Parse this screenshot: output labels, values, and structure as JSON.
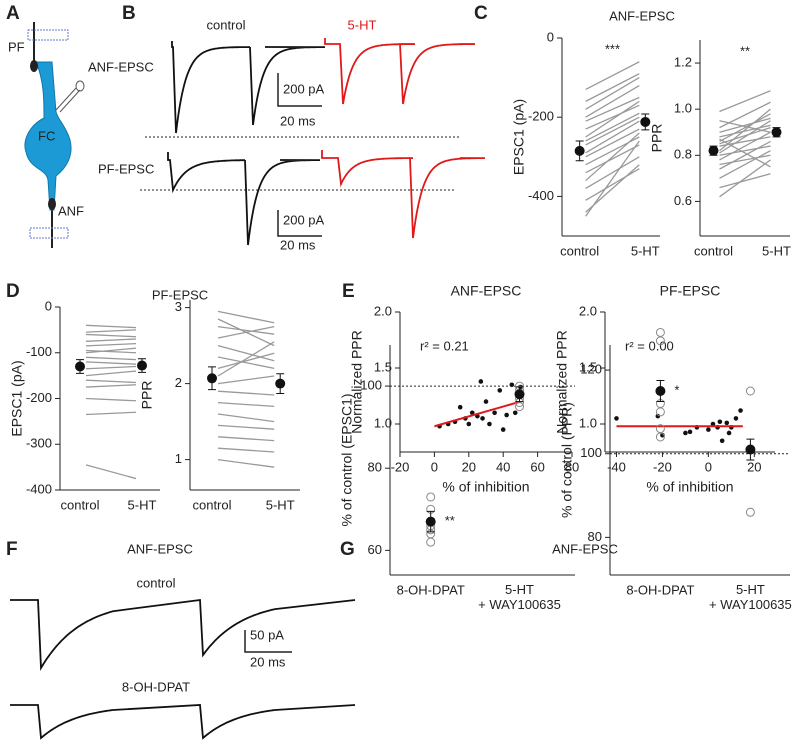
{
  "figure": {
    "panels": [
      "A",
      "B",
      "C",
      "D",
      "E",
      "F",
      "G"
    ],
    "diagram": {
      "pf": "PF",
      "fc": "FC",
      "anf": "ANF"
    },
    "b": {
      "control": "control",
      "treated": "5-HT",
      "anf": "ANF-EPSC",
      "pf": "PF-EPSC",
      "scale_amp": "200 pA",
      "scale_time": "20 ms"
    },
    "c_title": "ANF-EPSC",
    "d_title": "PF-EPSC",
    "g_title": "ANF-EPSC",
    "f": {
      "title": "ANF-EPSC",
      "control": "control",
      "drug": "8-OH-DPAT",
      "scale_amp": "50 pA",
      "scale_time": "20 ms"
    }
  },
  "chart_data": [
    {
      "type": "slope",
      "categories": [
        "control",
        "5-HT"
      ],
      "ylabel": "EPSC1 (pA)",
      "annotation": "***",
      "pairs": [
        [
          -130,
          -60
        ],
        [
          -160,
          -90
        ],
        [
          -180,
          -100
        ],
        [
          -200,
          -120
        ],
        [
          -210,
          -150
        ],
        [
          -230,
          -170
        ],
        [
          -250,
          -160
        ],
        [
          -260,
          -190
        ],
        [
          -270,
          -200
        ],
        [
          -290,
          -210
        ],
        [
          -300,
          -230
        ],
        [
          -320,
          -250
        ],
        [
          -340,
          -270
        ],
        [
          -360,
          -240
        ],
        [
          -380,
          -300
        ],
        [
          -410,
          -330
        ],
        [
          -440,
          -320
        ],
        [
          -450,
          -260
        ]
      ],
      "mean": [
        -285,
        -212
      ],
      "error": [
        25,
        20
      ],
      "ylim": [
        -500,
        0
      ],
      "yticks": [
        -400,
        -200,
        0
      ]
    },
    {
      "type": "slope",
      "categories": [
        "control",
        "5-HT"
      ],
      "ylabel": "PPR",
      "annotation": "**",
      "pairs": [
        [
          0.62,
          0.78
        ],
        [
          0.66,
          0.72
        ],
        [
          0.7,
          0.82
        ],
        [
          0.74,
          0.86
        ],
        [
          0.76,
          0.8
        ],
        [
          0.78,
          0.9
        ],
        [
          0.8,
          0.84
        ],
        [
          0.81,
          0.95
        ],
        [
          0.82,
          1.0
        ],
        [
          0.84,
          0.88
        ],
        [
          0.85,
          0.92
        ],
        [
          0.86,
          0.98
        ],
        [
          0.87,
          0.75
        ],
        [
          0.88,
          0.93
        ],
        [
          0.9,
          0.96
        ],
        [
          0.92,
          1.03
        ],
        [
          0.95,
          0.9
        ],
        [
          0.99,
          1.08
        ]
      ],
      "mean": [
        0.82,
        0.9
      ],
      "error": [
        0.02,
        0.02
      ],
      "ylim": [
        0.45,
        1.3
      ],
      "yticks": [
        0.6,
        0.8,
        {
          "value": 1,
          "label": "1.0"
        },
        1.2
      ]
    },
    {
      "type": "slope",
      "categories": [
        "control",
        "5-HT"
      ],
      "ylabel": "EPSC1 (pA)",
      "pairs": [
        [
          -40,
          -45
        ],
        [
          -55,
          -50
        ],
        [
          -60,
          -65
        ],
        [
          -75,
          -70
        ],
        [
          -85,
          -80
        ],
        [
          -95,
          -100
        ],
        [
          -100,
          -90
        ],
        [
          -110,
          -115
        ],
        [
          -120,
          -125
        ],
        [
          -135,
          -130
        ],
        [
          -150,
          -140
        ],
        [
          -160,
          -165
        ],
        [
          -175,
          -170
        ],
        [
          -200,
          -205
        ],
        [
          -235,
          -230
        ],
        [
          -345,
          -375
        ]
      ],
      "mean": [
        -130,
        -128
      ],
      "error": [
        15,
        15
      ],
      "ylim": [
        -400,
        0
      ],
      "yticks": [
        -400,
        -300,
        -200,
        -100,
        0
      ]
    },
    {
      "type": "slope",
      "categories": [
        "control",
        "5-HT"
      ],
      "ylabel": "PPR",
      "pairs": [
        [
          1.0,
          0.9
        ],
        [
          1.15,
          1.1
        ],
        [
          1.3,
          1.25
        ],
        [
          1.45,
          1.4
        ],
        [
          1.6,
          1.5
        ],
        [
          1.75,
          1.7
        ],
        [
          1.9,
          1.85
        ],
        [
          2.0,
          2.1
        ],
        [
          2.2,
          2.4
        ],
        [
          2.35,
          2.2
        ],
        [
          2.5,
          2.3
        ],
        [
          2.6,
          2.75
        ],
        [
          2.75,
          2.65
        ],
        [
          2.85,
          2.5
        ],
        [
          2.95,
          2.8
        ],
        [
          2.1,
          2.55
        ]
      ],
      "mean": [
        2.07,
        2.0
      ],
      "error": [
        0.15,
        0.13
      ],
      "ylim": [
        0.6,
        3.1
      ],
      "yticks": [
        1,
        2,
        3
      ]
    },
    {
      "type": "scatter",
      "title": "ANF-EPSC",
      "xlabel": "% of inhibition",
      "ylabel": "Normalized PPR",
      "annotation": "r² = 0.21",
      "x": [
        3,
        8,
        12,
        15,
        18,
        20,
        22,
        25,
        27,
        28,
        30,
        32,
        35,
        38,
        40,
        42,
        45,
        47,
        50
      ],
      "y": [
        0.98,
        1.0,
        1.02,
        1.15,
        1.05,
        1.0,
        1.1,
        1.07,
        1.38,
        1.05,
        1.2,
        1.0,
        1.1,
        1.3,
        0.95,
        1.08,
        1.35,
        1.1,
        1.33
      ],
      "fit": {
        "x": [
          0,
          50
        ],
        "y": [
          0.98,
          1.2
        ],
        "color": "#e0191b"
      },
      "xlim": [
        -20,
        80
      ],
      "xticks": [
        -20,
        0,
        20,
        40,
        60,
        80
      ],
      "ylim": [
        0.75,
        2.0
      ],
      "yticks": [
        {
          "value": 1,
          "label": "1.0"
        },
        1.5,
        {
          "value": 2,
          "label": "2.0"
        }
      ]
    },
    {
      "type": "scatter",
      "title": "PF-EPSC",
      "xlabel": "% of inhibition",
      "ylabel": "Normalized PPR",
      "annotation": "r² = 0.00",
      "x": [
        -40,
        -22,
        -20,
        -10,
        -8,
        -5,
        0,
        2,
        4,
        5,
        6,
        8,
        9,
        10,
        12,
        14
      ],
      "y": [
        1.05,
        1.07,
        0.9,
        0.92,
        0.93,
        0.97,
        0.95,
        1.0,
        0.97,
        1.02,
        0.85,
        1.01,
        0.92,
        0.97,
        1.05,
        1.12
      ],
      "fit": {
        "x": [
          -40,
          15
        ],
        "y": [
          0.98,
          0.98
        ],
        "color": "#e0191b"
      },
      "xlim": [
        -45,
        29
      ],
      "xticks": [
        -40,
        -20,
        0,
        20
      ],
      "ylim": [
        0.75,
        2.0
      ],
      "yticks": [
        {
          "value": 1,
          "label": "1.0"
        },
        1.5,
        {
          "value": 2,
          "label": "2.0"
        }
      ]
    },
    {
      "type": "strip",
      "categories": [
        "8-OH-DPAT",
        "5-HT\n+ WAY100635"
      ],
      "ylabel": "% of control (EPSC1)",
      "annotation": "**",
      "points": [
        [
          62,
          64,
          65,
          66,
          67,
          70,
          73
        ],
        [
          95,
          96,
          97,
          98,
          99,
          100
        ]
      ],
      "mean": [
        67,
        98
      ],
      "error": [
        2.5,
        1.8
      ],
      "refline": 100,
      "ylim": [
        54,
        110
      ],
      "yticks": [
        60,
        80,
        100
      ]
    },
    {
      "type": "strip",
      "categories": [
        "8-OH-DPAT",
        "5-HT\n+ WAY100635"
      ],
      "ylabel": "% of control (PPR)",
      "annotation": "*",
      "points": [
        [
          104,
          106,
          110,
          112,
          127,
          129
        ],
        [
          86,
          115
        ]
      ],
      "mean": [
        115,
        101
      ],
      "error": [
        2.5,
        2.5
      ],
      "refline": 100,
      "ylim": [
        71,
        126
      ],
      "yticks": [
        80,
        100,
        120
      ]
    }
  ]
}
